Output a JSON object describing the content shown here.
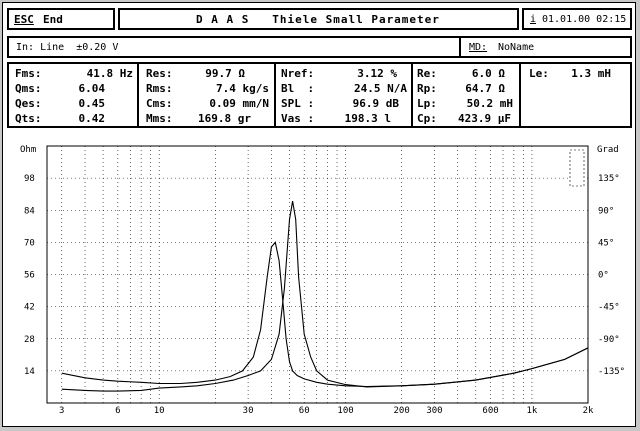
{
  "window": {
    "esc_key": "ESC",
    "esc_label": "End",
    "title": "D A A S   Thiele Small Parameter",
    "info_icon_glyph": "i",
    "datetime": "01.01.00 02:15"
  },
  "input_bar": {
    "input_text": "In: Line  ±0.20 V",
    "md_key": "MD:",
    "md_value": "NoName"
  },
  "params": {
    "col1": [
      {
        "label": "Fms:",
        "value": "41.8 Hz"
      },
      {
        "label": "Qms:",
        "value": "6.04"
      },
      {
        "label": "Qes:",
        "value": "0.45"
      },
      {
        "label": "Qts:",
        "value": "0.42"
      }
    ],
    "col2": [
      {
        "label": "Res:",
        "value": "99.7 Ω"
      },
      {
        "label": "Rms:",
        "value": "7.4 kg/s"
      },
      {
        "label": "Cms:",
        "value": "0.09 mm/N"
      },
      {
        "label": "Mms:",
        "value": "169.8 gr"
      }
    ],
    "col3": [
      {
        "label": "Nref:",
        "value": "3.12 %"
      },
      {
        "label": "Bl  :",
        "value": "24.5 N/A"
      },
      {
        "label": "SPL :",
        "value": "96.9 dB"
      },
      {
        "label": "Vas :",
        "value": "198.3 l"
      }
    ],
    "col4": [
      {
        "label": "Re:",
        "value": "6.0 Ω"
      },
      {
        "label": "Rp:",
        "value": "64.7 Ω"
      },
      {
        "label": "Lp:",
        "value": "50.2 mH"
      },
      {
        "label": "Cp:",
        "value": "423.9 μF"
      }
    ],
    "le": {
      "label": "Le:",
      "value": "1.3 mH"
    }
  },
  "chart_data": {
    "type": "line",
    "title": "",
    "xscale": "log",
    "xlim": [
      2.5,
      2000
    ],
    "ylim": [
      0,
      112
    ],
    "y2lim": [
      -180,
      180
    ],
    "ylabel": "Ohm",
    "y2label": "Grad",
    "x_ticks": [
      "3",
      "6",
      "10",
      "30",
      "60",
      "100",
      "200",
      "300",
      "600",
      "1k",
      "2k"
    ],
    "x_tick_values": [
      3,
      6,
      10,
      30,
      60,
      100,
      200,
      300,
      600,
      1000,
      2000
    ],
    "y_ticks": [
      "98",
      "84",
      "70",
      "56",
      "42",
      "28",
      "14"
    ],
    "y_tick_values": [
      98,
      84,
      70,
      56,
      42,
      28,
      14
    ],
    "y2_ticks": [
      "135°",
      "90°",
      "45°",
      "0°",
      "-45°",
      "-90°",
      "-135°"
    ],
    "y2_tick_values": [
      135,
      90,
      45,
      0,
      -45,
      -90,
      -135
    ],
    "grid": true,
    "series": [
      {
        "x": [
          3,
          4,
          5,
          6,
          8,
          10,
          13,
          16,
          20,
          24,
          28,
          32,
          35,
          38,
          40,
          42,
          44,
          46,
          48,
          50,
          52,
          55,
          60,
          70,
          80,
          100,
          130,
          200,
          300,
          500,
          800,
          1000,
          1500,
          2000
        ],
        "y": [
          13,
          11,
          10,
          9.5,
          9,
          8.5,
          8.5,
          9,
          10,
          11.5,
          14,
          20,
          32,
          55,
          68,
          70,
          62,
          45,
          28,
          18,
          14,
          12,
          10.5,
          9,
          8.2,
          7.5,
          7.2,
          7.5,
          8.2,
          10,
          13,
          15,
          19,
          24
        ]
      },
      {
        "x": [
          3,
          4,
          5,
          6,
          8,
          10,
          13,
          16,
          20,
          25,
          30,
          35,
          40,
          44,
          47,
          50,
          52,
          54,
          56,
          60,
          65,
          70,
          80,
          100,
          130,
          200,
          300,
          500,
          800,
          1000,
          1500,
          2000
        ],
        "y": [
          6,
          5.5,
          5.2,
          5.2,
          5.5,
          6.5,
          7,
          7.5,
          8.5,
          10,
          12,
          14,
          19,
          30,
          50,
          80,
          88,
          80,
          55,
          30,
          20,
          14,
          10,
          8,
          7,
          7.5,
          8.2,
          10,
          13,
          15,
          19,
          24
        ]
      }
    ]
  }
}
